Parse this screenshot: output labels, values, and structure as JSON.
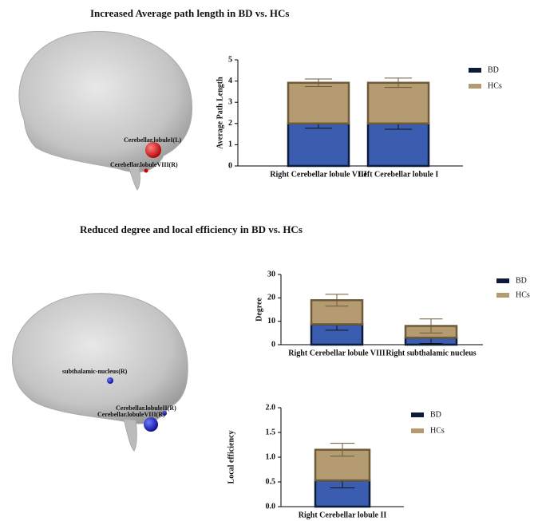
{
  "titles": [
    "Increased Average path length in BD vs. HCs",
    "Reduced degree and local efficiency in BD vs. HCs"
  ],
  "brain_labels": [
    "Cerebellar.lobuleI(L)",
    "Cerebellar.lobuleVIII(R)",
    "subthalamic-nucleus(R)",
    "Cerebellar.lobuleII(R)",
    "Cerebellar.lobuleVIII(R)"
  ],
  "chart_data": [
    {
      "type": "stacked_bar",
      "ylabel": "Average Path Length",
      "categories": [
        "Right Cerebellar lobule VIII",
        "Left Cerebellar lobule I"
      ],
      "series": [
        {
          "name": "BD",
          "color": "#3a5daf",
          "values": [
            2.0,
            2.0
          ],
          "errors": [
            0.22,
            0.27
          ]
        },
        {
          "name": "HCs",
          "color": "#b59b72",
          "values": [
            1.92,
            1.92
          ],
          "errors": [
            0.18,
            0.22
          ]
        }
      ],
      "ylim": [
        0,
        5
      ],
      "yticks": [
        0,
        1,
        2,
        3,
        4,
        5
      ]
    },
    {
      "type": "stacked_bar",
      "ylabel": "Degree",
      "categories": [
        "Right Cerebellar lobule VIII",
        "Right subthalamic nucleus"
      ],
      "series": [
        {
          "name": "BD",
          "color": "#3a5daf",
          "values": [
            8.7,
            3.0
          ],
          "errors": [
            2.5,
            2.5
          ]
        },
        {
          "name": "HCs",
          "color": "#b59b72",
          "values": [
            10.3,
            5.0
          ],
          "errors": [
            2.5,
            3.0
          ]
        }
      ],
      "ylim": [
        0,
        30
      ],
      "yticks": [
        0,
        10,
        20,
        30
      ]
    },
    {
      "type": "stacked_bar",
      "ylabel": "Local efficiency",
      "categories": [
        "Right Cerebellar lobule II"
      ],
      "series": [
        {
          "name": "BD",
          "color": "#3a5daf",
          "values": [
            0.53
          ],
          "errors": [
            0.15
          ]
        },
        {
          "name": "HCs",
          "color": "#b59b72",
          "values": [
            0.62
          ],
          "errors": [
            0.13
          ]
        }
      ],
      "ylim": [
        0,
        2
      ],
      "yticks": [
        {
          "value": 0,
          "label": "0.0"
        },
        {
          "value": 0.5,
          "label": "0.5"
        },
        {
          "value": 1,
          "label": "1.0"
        },
        {
          "value": 1.5,
          "label": "1.5"
        },
        {
          "value": 2,
          "label": "2.0"
        }
      ]
    }
  ]
}
